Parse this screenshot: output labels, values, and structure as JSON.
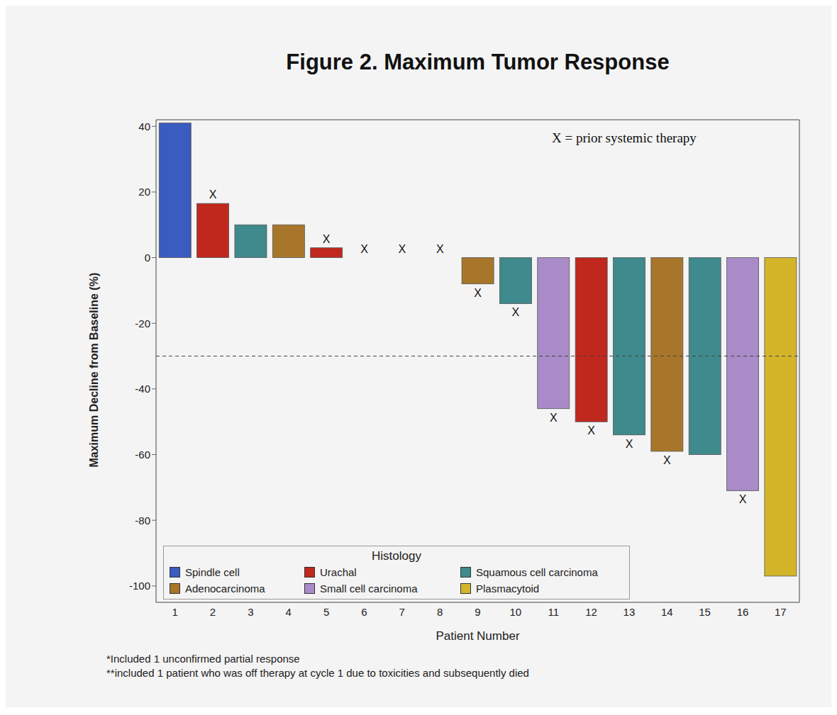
{
  "chart_data": {
    "type": "bar",
    "title": "Figure 2. Maximum Tumor Response",
    "x_label": "Patient Number",
    "y_label": "Maximum Decline from Baseline (%)",
    "categories": [
      "1",
      "2",
      "3",
      "4",
      "5",
      "6",
      "7",
      "8",
      "9",
      "10",
      "11",
      "12",
      "13",
      "14",
      "15",
      "16",
      "17"
    ],
    "values": [
      41,
      16.5,
      10,
      10,
      3,
      0,
      0,
      0,
      -8,
      -14,
      -46,
      -50,
      -54,
      -59,
      -60,
      -71,
      -97
    ],
    "histology": [
      "Spindle cell",
      "Urachal",
      "Squamous cell carcinoma",
      "Adenocarcinoma",
      "Urachal",
      null,
      null,
      null,
      "Adenocarcinoma",
      "Squamous cell carcinoma",
      "Small cell carcinoma",
      "Urachal",
      "Squamous cell carcinoma",
      "Adenocarcinoma",
      "Squamous cell carcinoma",
      "Small cell carcinoma",
      "Plasmacytoid"
    ],
    "histology_title": "Histology",
    "histology_items": [
      {
        "name": "Spindle cell",
        "color": "#3a5bbf"
      },
      {
        "name": "Urachal",
        "color": "#c0281e"
      },
      {
        "name": "Squamous cell carcinoma",
        "color": "#3f8a8c"
      },
      {
        "name": "Adenocarcinoma",
        "color": "#a8762a"
      },
      {
        "name": "Small cell carcinoma",
        "color": "#a98bc7"
      },
      {
        "name": "Plasmacytoid",
        "color": "#d4b52a"
      }
    ],
    "prior_therapy": [
      false,
      true,
      false,
      false,
      true,
      true,
      true,
      true,
      true,
      true,
      true,
      true,
      true,
      true,
      false,
      true,
      false
    ],
    "prior_therapy_mark": "X",
    "prior_therapy_note": "X = prior systemic therapy",
    "reference_line": -30,
    "ylim": [
      -105,
      42
    ],
    "yticks": [
      40,
      20,
      0,
      -20,
      -40,
      -60,
      -80,
      -100
    ],
    "footnotes": [
      "*Included 1 unconfirmed partial response",
      "**included 1 patient who was off therapy at cycle 1 due to toxicities and subsequently died"
    ]
  }
}
